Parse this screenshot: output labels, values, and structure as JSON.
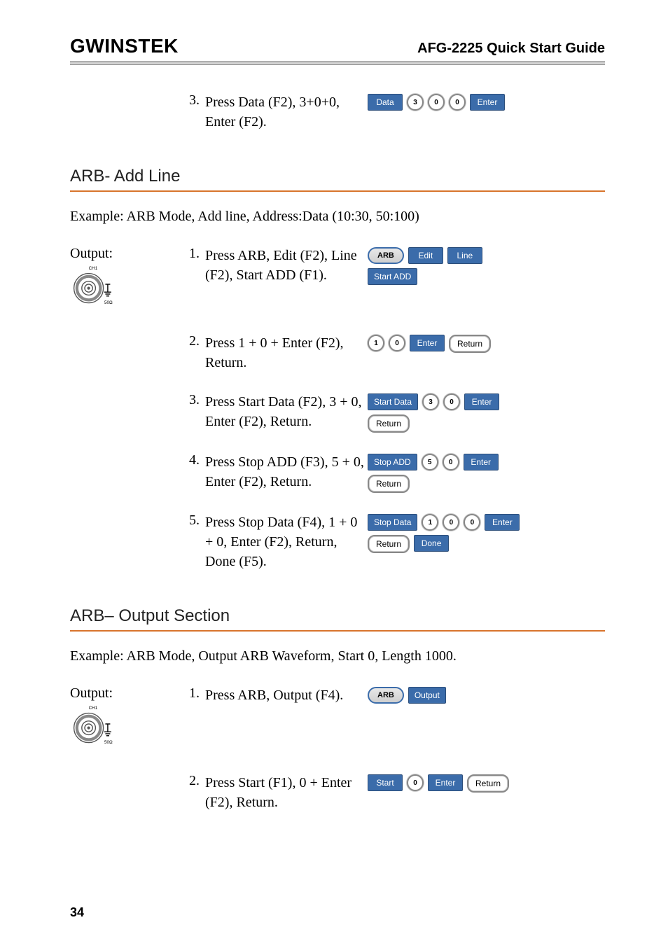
{
  "header": {
    "logo": "GWINSTEK",
    "title": "AFG-2225 Quick Start Guide"
  },
  "top_step": {
    "num": "3.",
    "text": "Press Data (F2), 3+0+0, Enter (F2).",
    "buttons": [
      {
        "kind": "blue",
        "label": "Data"
      },
      {
        "kind": "num",
        "label": "3"
      },
      {
        "kind": "num",
        "label": "0"
      },
      {
        "kind": "num",
        "label": "0"
      },
      {
        "kind": "blue",
        "label": "Enter"
      }
    ]
  },
  "section1": {
    "title": "ARB- Add Line",
    "example": "Example: ARB Mode, Add line, Address:Data (10:30, 50:100)",
    "output_label": "Output:",
    "bnc_label": "CH1",
    "bnc_imp": "50Ω",
    "steps": [
      {
        "num": "1.",
        "text": "Press ARB, Edit (F2), Line (F2), Start ADD (F1).",
        "buttons": [
          {
            "kind": "grey",
            "label": "ARB"
          },
          {
            "kind": "blue",
            "label": "Edit"
          },
          {
            "kind": "blue",
            "label": "Line"
          },
          {
            "kind": "blue",
            "label": "Start ADD"
          }
        ]
      },
      {
        "num": "2.",
        "text": "Press 1 + 0 + Enter (F2), Return.",
        "buttons": [
          {
            "kind": "num",
            "label": "1"
          },
          {
            "kind": "num",
            "label": "0"
          },
          {
            "kind": "blue",
            "label": "Enter"
          },
          {
            "kind": "return",
            "label": "Return"
          }
        ]
      },
      {
        "num": "3.",
        "text": "Press Start Data (F2), 3 + 0, Enter (F2), Return.",
        "buttons": [
          {
            "kind": "blue",
            "label": "Start Data"
          },
          {
            "kind": "num",
            "label": "3"
          },
          {
            "kind": "num",
            "label": "0"
          },
          {
            "kind": "blue",
            "label": "Enter"
          },
          {
            "kind": "return",
            "label": "Return"
          }
        ]
      },
      {
        "num": "4.",
        "text": "Press Stop ADD (F3), 5 + 0, Enter (F2), Return.",
        "buttons": [
          {
            "kind": "blue",
            "label": "Stop ADD"
          },
          {
            "kind": "num",
            "label": "5"
          },
          {
            "kind": "num",
            "label": "0"
          },
          {
            "kind": "blue",
            "label": "Enter"
          },
          {
            "kind": "return",
            "label": "Return"
          }
        ]
      },
      {
        "num": "5.",
        "text": "Press Stop Data (F4), 1 + 0 + 0, Enter (F2), Return, Done (F5).",
        "buttons": [
          {
            "kind": "blue",
            "label": "Stop Data"
          },
          {
            "kind": "num",
            "label": "1"
          },
          {
            "kind": "num",
            "label": "0"
          },
          {
            "kind": "num",
            "label": "0"
          },
          {
            "kind": "blue",
            "label": "Enter"
          },
          {
            "kind": "return",
            "label": "Return"
          },
          {
            "kind": "blue",
            "label": "Done"
          }
        ]
      }
    ]
  },
  "section2": {
    "title": "ARB– Output Section",
    "example": "Example: ARB Mode, Output ARB Waveform, Start 0, Length 1000.",
    "output_label": "Output:",
    "bnc_label": "CH1",
    "bnc_imp": "50Ω",
    "steps": [
      {
        "num": "1.",
        "text": "Press ARB, Output (F4).",
        "buttons": [
          {
            "kind": "grey",
            "label": "ARB"
          },
          {
            "kind": "blue",
            "label": "Output"
          }
        ]
      },
      {
        "num": "2.",
        "text": "Press Start (F1), 0 + Enter (F2), Return.",
        "buttons": [
          {
            "kind": "blue",
            "label": "Start"
          },
          {
            "kind": "num",
            "label": "0"
          },
          {
            "kind": "blue",
            "label": "Enter"
          },
          {
            "kind": "return",
            "label": "Return"
          }
        ]
      }
    ]
  },
  "page_number": "34",
  "colors": {
    "rule": "#d8742c",
    "blue_btn": "#3b6caa"
  }
}
